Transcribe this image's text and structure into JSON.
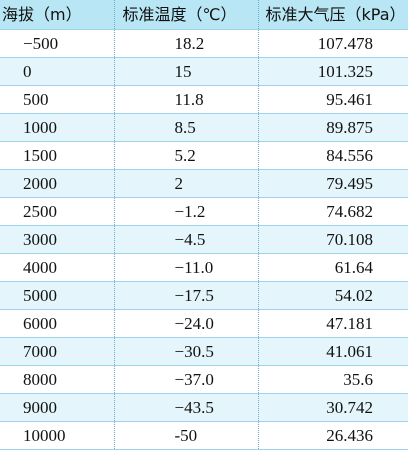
{
  "table": {
    "headers": [
      "海拔（m）",
      "标准温度（℃）",
      "标准大气压（kPa）"
    ],
    "rows": [
      [
        "−500",
        "18.2",
        "107.478"
      ],
      [
        "0",
        "15",
        "101.325"
      ],
      [
        "500",
        "11.8",
        "95.461"
      ],
      [
        "1000",
        "8.5",
        "89.875"
      ],
      [
        "1500",
        "5.2",
        "84.556"
      ],
      [
        "2000",
        "2",
        "79.495"
      ],
      [
        "2500",
        "−1.2",
        "74.682"
      ],
      [
        "3000",
        "−4.5",
        "70.108"
      ],
      [
        "4000",
        "−11.0",
        "61.64"
      ],
      [
        "5000",
        "−17.5",
        "54.02"
      ],
      [
        "6000",
        "−24.0",
        "47.181"
      ],
      [
        "7000",
        "−30.5",
        "41.061"
      ],
      [
        "8000",
        "−37.0",
        "35.6"
      ],
      [
        "9000",
        "−43.5",
        "30.742"
      ],
      [
        "10000",
        "-50",
        "26.436"
      ]
    ],
    "colors": {
      "header_bg": "#b9e6f4",
      "row_alt_bg": "#e4f5fb",
      "row_bg": "#ffffff",
      "border": "#9cd3ea"
    }
  }
}
